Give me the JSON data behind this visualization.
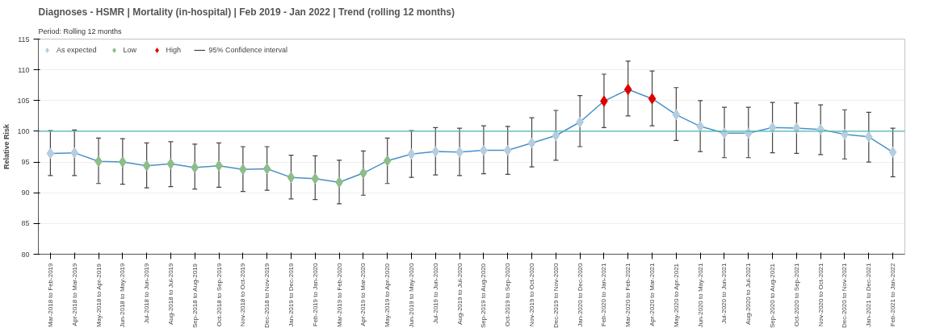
{
  "chart_data": {
    "type": "line",
    "title": "Diagnoses - HSMR | Mortality (in-hospital) | Feb 2019 - Jan 2022 | Trend (rolling 12 months)",
    "subtitle": "Period: Rolling 12 months",
    "ylabel": "Relative Risk",
    "categories": [
      "Mar-2018 to Feb-2019",
      "Apr-2018 to Mar-2019",
      "May-2018 to Apr-2019",
      "Jun-2018 to May-2019",
      "Jul-2018 to Jun-2019",
      "Aug-2018 to Jul-2019",
      "Sep-2018 to Aug-2019",
      "Oct-2018 to Sep-2019",
      "Nov-2018 to Oct-2019",
      "Dec-2018 to Nov-2019",
      "Jan-2019 to Dec-2019",
      "Feb-2019 to Jan-2020",
      "Mar-2019 to Feb-2020",
      "Apr-2019 to Mar-2020",
      "May-2019 to Apr-2020",
      "Jun-2019 to May-2020",
      "Jul-2019 to Jun-2020",
      "Aug-2019 to Jul-2020",
      "Sep-2019 to Aug-2020",
      "Oct-2019 to Sep-2020",
      "Nov-2019 to Oct-2020",
      "Dec-2019 to Nov-2020",
      "Jan-2020 to Dec-2020",
      "Feb-2020 to Jan-2021",
      "Mar-2020 to Feb-2021",
      "Apr-2020 to Mar-2021",
      "May-2020 to Apr-2021",
      "Jun-2020 to May-2021",
      "Jul-2020 to Jun-2021",
      "Aug-2020 to Jul-2021",
      "Sep-2020 to Aug-2021",
      "Oct-2020 to Sep-2021",
      "Nov-2020 to Oct-2021",
      "Dec-2020 to Nov-2021",
      "Jan-2021 to Dec-2021",
      "Feb-2021 to Jan-2022"
    ],
    "series": [
      {
        "color": "#4a90c8",
        "marker": "none",
        "values": [
          96.4,
          96.5,
          95.1,
          95.0,
          94.4,
          94.7,
          94.1,
          94.4,
          93.8,
          93.9,
          92.5,
          92.3,
          91.7,
          93.2,
          95.2,
          96.3,
          96.7,
          96.6,
          96.9,
          96.9,
          98.1,
          99.3,
          101.5,
          104.9,
          106.8,
          105.3,
          102.7,
          100.8,
          99.7,
          99.7,
          100.6,
          100.5,
          100.3,
          99.5,
          99.1,
          96.6
        ],
        "errors": [
          [
            92.8,
            100.1
          ],
          [
            92.8,
            100.2
          ],
          [
            91.5,
            98.9
          ],
          [
            91.4,
            98.8
          ],
          [
            90.8,
            98.1
          ],
          [
            91.0,
            98.3
          ],
          [
            90.6,
            97.9
          ],
          [
            90.9,
            98.1
          ],
          [
            90.2,
            97.5
          ],
          [
            90.4,
            97.5
          ],
          [
            89.0,
            96.1
          ],
          [
            88.9,
            96.0
          ],
          [
            88.2,
            95.3
          ],
          [
            89.6,
            96.8
          ],
          [
            91.5,
            98.9
          ],
          [
            92.5,
            100.1
          ],
          [
            92.9,
            100.6
          ],
          [
            92.8,
            100.5
          ],
          [
            93.1,
            100.9
          ],
          [
            93.0,
            100.8
          ],
          [
            94.2,
            102.2
          ],
          [
            95.3,
            103.4
          ],
          [
            97.5,
            105.8
          ],
          [
            100.6,
            109.3
          ],
          [
            102.5,
            111.4
          ],
          [
            100.9,
            109.8
          ],
          [
            98.5,
            107.1
          ],
          [
            96.7,
            105.0
          ],
          [
            95.7,
            103.9
          ],
          [
            95.7,
            103.9
          ],
          [
            96.5,
            104.7
          ],
          [
            96.4,
            104.6
          ],
          [
            96.2,
            104.3
          ],
          [
            95.5,
            103.5
          ],
          [
            95.0,
            103.1
          ],
          [
            92.6,
            100.5
          ]
        ]
      },
      {
        "type": "scatter",
        "name": "As expected",
        "color": "#b4cddf",
        "marker": "diamond",
        "values": [
          96.4,
          96.5,
          null,
          null,
          null,
          null,
          null,
          null,
          null,
          null,
          null,
          null,
          null,
          null,
          null,
          96.3,
          96.7,
          96.6,
          96.9,
          96.9,
          98.1,
          99.3,
          101.5,
          null,
          null,
          null,
          102.7,
          100.8,
          99.7,
          99.7,
          100.6,
          100.5,
          100.3,
          99.5,
          99.1,
          96.6
        ]
      },
      {
        "type": "scatter",
        "name": "Low",
        "color": "#8dbd88",
        "marker": "diamond",
        "values": [
          null,
          null,
          95.1,
          95.0,
          94.4,
          94.7,
          94.1,
          94.4,
          93.8,
          93.9,
          92.5,
          92.3,
          91.7,
          93.2,
          95.2,
          null,
          null,
          null,
          null,
          null,
          null,
          null,
          null,
          null,
          null,
          null,
          null,
          null,
          null,
          null,
          null,
          null,
          null,
          null,
          null,
          null
        ]
      },
      {
        "type": "scatter",
        "name": "High",
        "color": "#e00000",
        "marker": "diamond",
        "values": [
          null,
          null,
          null,
          null,
          null,
          null,
          null,
          null,
          null,
          null,
          null,
          null,
          null,
          null,
          null,
          null,
          null,
          null,
          null,
          null,
          null,
          null,
          null,
          104.9,
          106.8,
          105.3,
          null,
          null,
          null,
          null,
          null,
          null,
          null,
          null,
          null,
          null
        ]
      }
    ],
    "annotations": [
      "95% Confidence interval"
    ],
    "ylim": [
      80,
      115
    ],
    "yticks": [
      80,
      85,
      90,
      95,
      100,
      105,
      110,
      115
    ],
    "ref_lines": [
      {
        "axis": "y",
        "value": 100,
        "color": "#4db6ac"
      }
    ],
    "grid": "y",
    "legend": "top left"
  }
}
